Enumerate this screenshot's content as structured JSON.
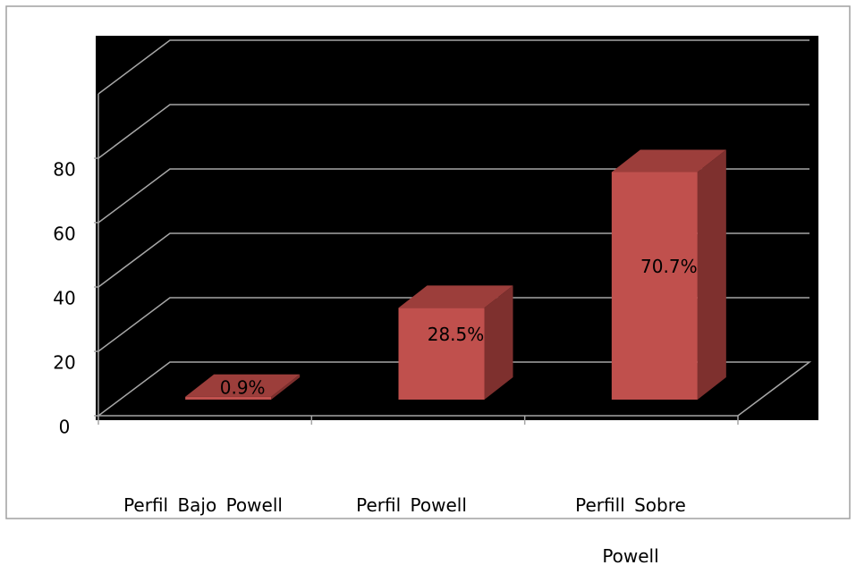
{
  "chart_data": {
    "type": "bar3d",
    "categories": [
      "Perfil Bajo Powell",
      "Perfil Powell",
      "Perfill Sobre Powell"
    ],
    "values": [
      0.9,
      28.5,
      70.7
    ],
    "value_labels": [
      "0.9%",
      "28.5%",
      "70.7%"
    ],
    "color": "#c0504d",
    "ylim": [
      0,
      100
    ],
    "yticks": [
      0,
      20,
      40,
      60,
      80
    ],
    "grid": true
  }
}
